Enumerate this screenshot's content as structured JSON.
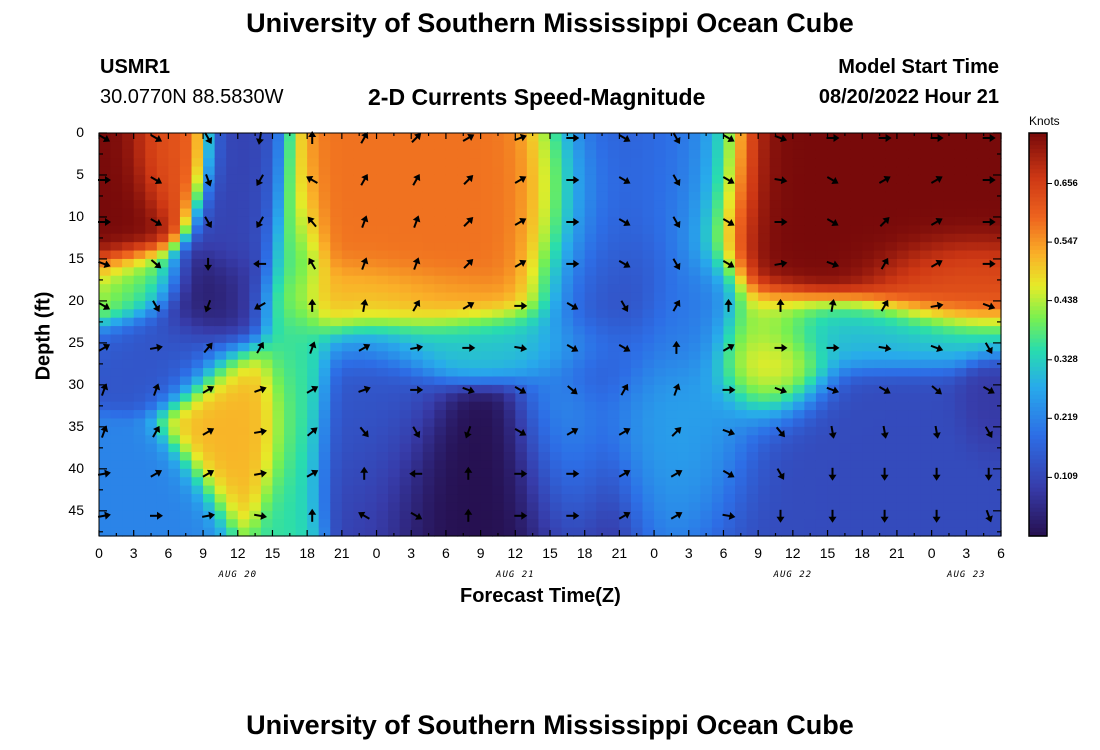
{
  "title_top": "University of Southern Mississippi Ocean Cube",
  "title_bottom": "University of Southern Mississippi Ocean Cube",
  "station": {
    "id": "USMR1",
    "coords": "30.0770N  88.5830W"
  },
  "model": {
    "label": "Model Start Time",
    "time": "08/20/2022 Hour 21"
  },
  "chart_data": {
    "type": "heatmap",
    "title": "2-D Currents Speed-Magnitude",
    "xlabel": "Forecast Time(Z)",
    "ylabel": "Depth (ft)",
    "x_hours_range": [
      0,
      78
    ],
    "y_depth_range_ft": [
      0,
      48
    ],
    "x_tick_labels": [
      "0",
      "3",
      "6",
      "9",
      "12",
      "15",
      "18",
      "21",
      "0",
      "3",
      "6",
      "9",
      "12",
      "15",
      "18",
      "21",
      "0",
      "3",
      "6",
      "9",
      "12",
      "15",
      "18",
      "21",
      "0",
      "3",
      "6"
    ],
    "y_tick_labels": [
      "0",
      "5",
      "10",
      "15",
      "20",
      "25",
      "30",
      "35",
      "40",
      "45"
    ],
    "date_labels": [
      {
        "label": "AUG 20",
        "hour": 12
      },
      {
        "label": "AUG 21",
        "hour": 36
      },
      {
        "label": "AUG 22",
        "hour": 60
      },
      {
        "label": "AUG 23",
        "hour": 75
      }
    ],
    "colorbar": {
      "unit": "Knots",
      "ticks": [
        "0.656",
        "0.547",
        "0.438",
        "0.328",
        "0.219",
        "0.109"
      ],
      "tick_values": [
        0.656,
        0.547,
        0.438,
        0.328,
        0.219,
        0.109
      ],
      "range": [
        0,
        0.75
      ]
    },
    "field_centers": [
      {
        "hour": 1.5,
        "depth": 7,
        "speed": 0.75,
        "sx": 3.0,
        "sy": 8
      },
      {
        "hour": 6,
        "depth": 3,
        "speed": 0.62,
        "sx": 2.5,
        "sy": 5
      },
      {
        "hour": 3,
        "depth": 18,
        "speed": 0.36,
        "sx": 3.0,
        "sy": 3
      },
      {
        "hour": 10,
        "depth": 20,
        "speed": 0.02,
        "sx": 3.5,
        "sy": 4
      },
      {
        "hour": 12,
        "depth": 8,
        "speed": 0.1,
        "sx": 2.5,
        "sy": 9
      },
      {
        "hour": 6,
        "depth": 26,
        "speed": 0.14,
        "sx": 4.0,
        "sy": 4
      },
      {
        "hour": 12,
        "depth": 34,
        "speed": 0.52,
        "sx": 3.5,
        "sy": 6
      },
      {
        "hour": 3,
        "depth": 44,
        "speed": 0.22,
        "sx": 4.0,
        "sy": 5
      },
      {
        "hour": 17,
        "depth": 30,
        "speed": 0.36,
        "sx": 2.0,
        "sy": 14
      },
      {
        "hour": 31,
        "depth": 10,
        "speed": 0.58,
        "sx": 9.0,
        "sy": 9
      },
      {
        "hour": 26,
        "depth": 20,
        "speed": 0.52,
        "sx": 8.0,
        "sy": 3
      },
      {
        "hour": 33,
        "depth": 25,
        "speed": 0.3,
        "sx": 9.0,
        "sy": 3
      },
      {
        "hour": 34,
        "depth": 41,
        "speed": 0.0,
        "sx": 8.0,
        "sy": 7
      },
      {
        "hour": 24,
        "depth": 35,
        "speed": 0.14,
        "sx": 4.0,
        "sy": 9
      },
      {
        "hour": 40,
        "depth": 38,
        "speed": 0.28,
        "sx": 3.0,
        "sy": 7
      },
      {
        "hour": 44,
        "depth": 15,
        "speed": 0.12,
        "sx": 4.5,
        "sy": 14
      },
      {
        "hour": 50,
        "depth": 5,
        "speed": 0.16,
        "sx": 4.0,
        "sy": 8
      },
      {
        "hour": 51,
        "depth": 22,
        "speed": 0.2,
        "sx": 3.0,
        "sy": 6
      },
      {
        "hour": 58,
        "depth": 27,
        "speed": 0.5,
        "sx": 3.5,
        "sy": 5
      },
      {
        "hour": 50,
        "depth": 35,
        "speed": 0.27,
        "sx": 5.0,
        "sy": 8
      },
      {
        "hour": 67,
        "depth": 7,
        "speed": 0.75,
        "sx": 11.0,
        "sy": 9
      },
      {
        "hour": 74,
        "depth": 18,
        "speed": 0.62,
        "sx": 5.0,
        "sy": 4
      },
      {
        "hour": 67,
        "depth": 24,
        "speed": 0.3,
        "sx": 9.0,
        "sy": 3
      },
      {
        "hour": 67,
        "depth": 40,
        "speed": 0.12,
        "sx": 10.0,
        "sy": 9
      },
      {
        "hour": 77,
        "depth": 33,
        "speed": 0.08,
        "sx": 2.0,
        "sy": 4
      }
    ],
    "arrow_field_note": "direction in degrees, 0 = up (northward), clockwise",
    "arrow_hours": [
      0,
      4.5,
      9,
      13.5,
      18,
      22.5,
      27,
      31.5,
      36,
      40.5,
      45,
      49.5,
      54,
      58.5,
      63,
      67.5,
      72,
      76.5
    ],
    "arrow_depths": [
      0,
      5,
      10,
      15,
      20,
      25,
      30,
      35,
      40,
      45
    ],
    "arrow_directions_deg": [
      [
        120,
        120,
        150,
        190,
        0,
        30,
        45,
        60,
        70,
        90,
        120,
        150,
        120,
        110,
        90,
        90,
        90,
        90
      ],
      [
        90,
        120,
        160,
        210,
        300,
        30,
        30,
        45,
        60,
        90,
        120,
        150,
        120,
        100,
        120,
        60,
        60,
        90
      ],
      [
        90,
        120,
        150,
        210,
        320,
        20,
        20,
        45,
        60,
        90,
        120,
        150,
        120,
        90,
        120,
        45,
        60,
        90
      ],
      [
        110,
        130,
        180,
        270,
        330,
        20,
        20,
        45,
        60,
        90,
        120,
        150,
        120,
        80,
        110,
        30,
        60,
        90
      ],
      [
        120,
        150,
        200,
        240,
        0,
        10,
        30,
        60,
        90,
        120,
        150,
        30,
        0,
        0,
        10,
        30,
        80,
        110
      ],
      [
        60,
        80,
        40,
        30,
        20,
        60,
        80,
        90,
        100,
        120,
        120,
        0,
        60,
        90,
        90,
        100,
        110,
        150
      ],
      [
        20,
        20,
        60,
        70,
        60,
        70,
        90,
        110,
        120,
        130,
        30,
        20,
        90,
        110,
        110,
        120,
        130,
        120
      ],
      [
        20,
        30,
        60,
        80,
        50,
        140,
        150,
        200,
        120,
        60,
        60,
        45,
        110,
        140,
        170,
        170,
        170,
        150
      ],
      [
        80,
        60,
        60,
        80,
        60,
        0,
        270,
        0,
        90,
        90,
        60,
        60,
        120,
        150,
        180,
        180,
        180,
        180
      ],
      [
        80,
        90,
        80,
        100,
        0,
        300,
        120,
        0,
        90,
        90,
        60,
        60,
        100,
        180,
        180,
        180,
        180,
        160
      ]
    ]
  }
}
